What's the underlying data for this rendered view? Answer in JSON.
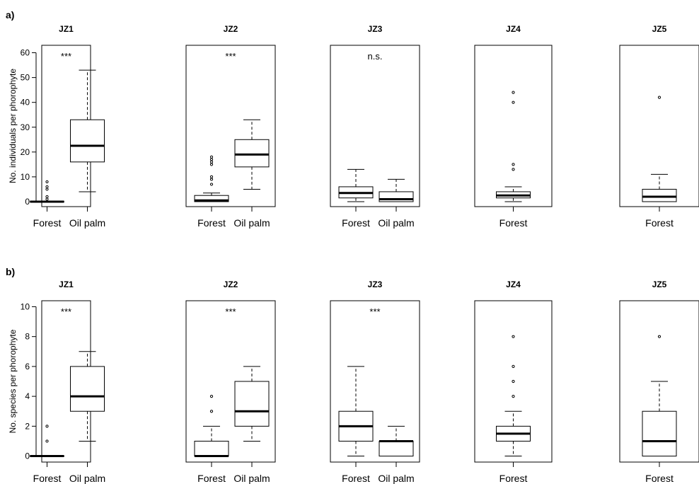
{
  "figure": {
    "rows": [
      {
        "panel_label": "a)",
        "ylabel": "No. individuals per phorophyte",
        "yticks": [
          0,
          10,
          20,
          30,
          40,
          50,
          60
        ]
      },
      {
        "panel_label": "b)",
        "ylabel": "No. species per phorophyte",
        "yticks": [
          0,
          2,
          4,
          6,
          8,
          10
        ]
      }
    ]
  },
  "chart_data": [
    {
      "type": "box",
      "title": "JZ1",
      "ylabel": "No. individuals per phorophyte",
      "ylim": [
        -2,
        63
      ],
      "annotation": "***",
      "categories": [
        "Forest",
        "Oil palm"
      ],
      "boxes": [
        {
          "category": "Forest",
          "min": 0,
          "q1": 0,
          "median": 0,
          "q3": 0,
          "max": 0,
          "outliers": [
            1,
            2,
            5,
            6,
            8
          ]
        },
        {
          "category": "Oil palm",
          "min": 4,
          "q1": 16,
          "median": 22.5,
          "q3": 33,
          "max": 53,
          "outliers": []
        }
      ]
    },
    {
      "type": "box",
      "title": "JZ2",
      "ylabel": "No. individuals per phorophyte",
      "ylim": [
        -2,
        63
      ],
      "annotation": "***",
      "categories": [
        "Forest",
        "Oil palm"
      ],
      "boxes": [
        {
          "category": "Forest",
          "min": 0,
          "q1": 0,
          "median": 0.5,
          "q3": 2.5,
          "max": 3.5,
          "outliers": [
            7,
            9,
            10,
            15,
            16,
            17,
            18
          ]
        },
        {
          "category": "Oil palm",
          "min": 5,
          "q1": 14,
          "median": 19,
          "q3": 25,
          "max": 33,
          "outliers": []
        }
      ]
    },
    {
      "type": "box",
      "title": "JZ3",
      "ylabel": "No. individuals per phorophyte",
      "ylim": [
        -2,
        63
      ],
      "annotation": "n.s.",
      "categories": [
        "Forest",
        "Oil palm"
      ],
      "boxes": [
        {
          "category": "Forest",
          "min": 0,
          "q1": 1.5,
          "median": 3.5,
          "q3": 6,
          "max": 13,
          "outliers": []
        },
        {
          "category": "Oil palm",
          "min": 0,
          "q1": 0,
          "median": 1,
          "q3": 4,
          "max": 9,
          "outliers": []
        }
      ]
    },
    {
      "type": "box",
      "title": "JZ4",
      "ylabel": "No. individuals per phorophyte",
      "ylim": [
        -2,
        63
      ],
      "annotation": "",
      "categories": [
        "Forest"
      ],
      "boxes": [
        {
          "category": "Forest",
          "min": 0,
          "q1": 1.5,
          "median": 2.5,
          "q3": 4,
          "max": 6,
          "outliers": [
            13,
            15,
            40,
            44
          ]
        }
      ]
    },
    {
      "type": "box",
      "title": "JZ5",
      "ylabel": "No. individuals per phorophyte",
      "ylim": [
        -2,
        63
      ],
      "annotation": "",
      "categories": [
        "Forest"
      ],
      "boxes": [
        {
          "category": "Forest",
          "min": 0,
          "q1": 0,
          "median": 2,
          "q3": 5,
          "max": 11,
          "outliers": [
            42
          ]
        }
      ]
    },
    {
      "type": "box",
      "title": "JZ1",
      "ylabel": "No. species per phorophyte",
      "ylim": [
        -0.4,
        10.4
      ],
      "annotation": "***",
      "categories": [
        "Forest",
        "Oil palm"
      ],
      "boxes": [
        {
          "category": "Forest",
          "min": 0,
          "q1": 0,
          "median": 0,
          "q3": 0,
          "max": 0,
          "outliers": [
            1,
            2
          ]
        },
        {
          "category": "Oil palm",
          "min": 1,
          "q1": 3,
          "median": 4,
          "q3": 6,
          "max": 7,
          "outliers": []
        }
      ]
    },
    {
      "type": "box",
      "title": "JZ2",
      "ylabel": "No. species per phorophyte",
      "ylim": [
        -0.4,
        10.4
      ],
      "annotation": "***",
      "categories": [
        "Forest",
        "Oil palm"
      ],
      "boxes": [
        {
          "category": "Forest",
          "min": 0,
          "q1": 0,
          "median": 0,
          "q3": 1,
          "max": 2,
          "outliers": [
            3,
            4
          ]
        },
        {
          "category": "Oil palm",
          "min": 1,
          "q1": 2,
          "median": 3,
          "q3": 5,
          "max": 6,
          "outliers": []
        }
      ]
    },
    {
      "type": "box",
      "title": "JZ3",
      "ylabel": "No. species per phorophyte",
      "ylim": [
        -0.4,
        10.4
      ],
      "annotation": "***",
      "categories": [
        "Forest",
        "Oil palm"
      ],
      "boxes": [
        {
          "category": "Forest",
          "min": 0,
          "q1": 1,
          "median": 2,
          "q3": 3,
          "max": 6,
          "outliers": []
        },
        {
          "category": "Oil palm",
          "min": 0,
          "q1": 0,
          "median": 1,
          "q3": 1,
          "max": 2,
          "outliers": []
        }
      ]
    },
    {
      "type": "box",
      "title": "JZ4",
      "ylabel": "No. species per phorophyte",
      "ylim": [
        -0.4,
        10.4
      ],
      "annotation": "",
      "categories": [
        "Forest"
      ],
      "boxes": [
        {
          "category": "Forest",
          "min": 0,
          "q1": 1,
          "median": 1.5,
          "q3": 2,
          "max": 3,
          "outliers": [
            4,
            5,
            6,
            8
          ]
        }
      ]
    },
    {
      "type": "box",
      "title": "JZ5",
      "ylabel": "No. species per phorophyte",
      "ylim": [
        -0.4,
        10.4
      ],
      "annotation": "",
      "categories": [
        "Forest"
      ],
      "boxes": [
        {
          "category": "Forest",
          "min": 0,
          "q1": 0,
          "median": 1,
          "q3": 3,
          "max": 5,
          "outliers": [
            8
          ]
        }
      ]
    }
  ]
}
